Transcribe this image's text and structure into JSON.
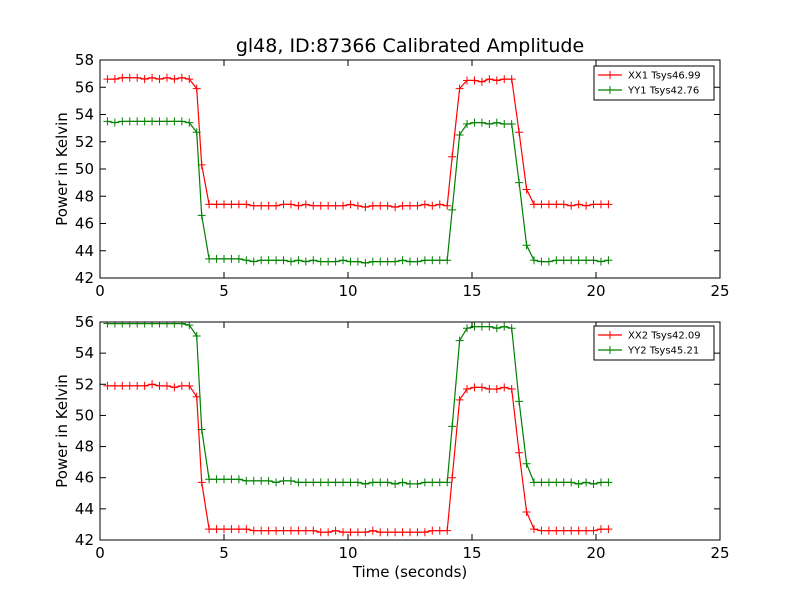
{
  "figure": {
    "title": "gl48, ID:87366 Calibrated Amplitude"
  },
  "chart_data": [
    {
      "type": "line",
      "title": "gl48, ID:87366 Calibrated Amplitude",
      "xlabel": "",
      "ylabel": "Power in Kelvin",
      "xlim": [
        0,
        25
      ],
      "ylim": [
        42,
        58
      ],
      "xticks": [
        0,
        5,
        10,
        15,
        20,
        25
      ],
      "yticks": [
        42,
        44,
        46,
        48,
        50,
        52,
        54,
        56,
        58
      ],
      "grid": false,
      "legend_position": "top-right",
      "marker": "plus",
      "series": [
        {
          "name": "XX1 Tsys46.99",
          "color": "#ff0000",
          "x": [
            0.3,
            0.6,
            0.9,
            1.2,
            1.5,
            1.8,
            2.1,
            2.4,
            2.7,
            3.0,
            3.3,
            3.6,
            3.9,
            4.1,
            4.4,
            4.7,
            5.0,
            5.3,
            5.6,
            5.9,
            6.2,
            6.5,
            6.8,
            7.1,
            7.4,
            7.7,
            8.0,
            8.3,
            8.6,
            8.9,
            9.2,
            9.5,
            9.8,
            10.1,
            10.4,
            10.7,
            11.0,
            11.3,
            11.6,
            11.9,
            12.2,
            12.5,
            12.8,
            13.1,
            13.4,
            13.7,
            14.0,
            14.2,
            14.5,
            14.8,
            15.1,
            15.4,
            15.7,
            16.0,
            16.3,
            16.6,
            16.9,
            17.2,
            17.5,
            17.8,
            18.1,
            18.4,
            18.7,
            19.0,
            19.3,
            19.6,
            19.9,
            20.2,
            20.5
          ],
          "y": [
            56.6,
            56.6,
            56.7,
            56.7,
            56.7,
            56.6,
            56.7,
            56.6,
            56.7,
            56.6,
            56.7,
            56.6,
            55.9,
            50.3,
            47.4,
            47.4,
            47.4,
            47.4,
            47.4,
            47.4,
            47.3,
            47.3,
            47.3,
            47.3,
            47.4,
            47.4,
            47.3,
            47.4,
            47.3,
            47.3,
            47.3,
            47.3,
            47.3,
            47.4,
            47.3,
            47.2,
            47.3,
            47.3,
            47.3,
            47.2,
            47.3,
            47.3,
            47.3,
            47.4,
            47.3,
            47.4,
            47.3,
            50.9,
            55.9,
            56.5,
            56.5,
            56.4,
            56.6,
            56.5,
            56.6,
            56.6,
            52.7,
            48.5,
            47.4,
            47.4,
            47.4,
            47.4,
            47.4,
            47.3,
            47.4,
            47.3,
            47.4,
            47.4,
            47.4
          ]
        },
        {
          "name": "YY1 Tsys42.76",
          "color": "#008000",
          "x": [
            0.3,
            0.6,
            0.9,
            1.2,
            1.5,
            1.8,
            2.1,
            2.4,
            2.7,
            3.0,
            3.3,
            3.6,
            3.9,
            4.1,
            4.4,
            4.7,
            5.0,
            5.3,
            5.6,
            5.9,
            6.2,
            6.5,
            6.8,
            7.1,
            7.4,
            7.7,
            8.0,
            8.3,
            8.6,
            8.9,
            9.2,
            9.5,
            9.8,
            10.1,
            10.4,
            10.7,
            11.0,
            11.3,
            11.6,
            11.9,
            12.2,
            12.5,
            12.8,
            13.1,
            13.4,
            13.7,
            14.0,
            14.2,
            14.5,
            14.8,
            15.1,
            15.4,
            15.7,
            16.0,
            16.3,
            16.6,
            16.9,
            17.2,
            17.5,
            17.8,
            18.1,
            18.4,
            18.7,
            19.0,
            19.3,
            19.6,
            19.9,
            20.2,
            20.5
          ],
          "y": [
            53.5,
            53.4,
            53.5,
            53.5,
            53.5,
            53.5,
            53.5,
            53.5,
            53.5,
            53.5,
            53.5,
            53.4,
            52.7,
            46.6,
            43.4,
            43.4,
            43.4,
            43.4,
            43.4,
            43.3,
            43.2,
            43.3,
            43.3,
            43.3,
            43.3,
            43.2,
            43.3,
            43.2,
            43.3,
            43.2,
            43.2,
            43.2,
            43.3,
            43.2,
            43.2,
            43.1,
            43.2,
            43.2,
            43.2,
            43.2,
            43.3,
            43.2,
            43.2,
            43.3,
            43.3,
            43.3,
            43.3,
            47.0,
            52.5,
            53.3,
            53.4,
            53.4,
            53.3,
            53.4,
            53.3,
            53.3,
            49.0,
            44.4,
            43.3,
            43.2,
            43.2,
            43.3,
            43.3,
            43.3,
            43.3,
            43.3,
            43.3,
            43.2,
            43.3
          ]
        }
      ]
    },
    {
      "type": "line",
      "title": "",
      "xlabel": "Time (seconds)",
      "ylabel": "Power in Kelvin",
      "xlim": [
        0,
        25
      ],
      "ylim": [
        42,
        56
      ],
      "xticks": [
        0,
        5,
        10,
        15,
        20,
        25
      ],
      "yticks": [
        42,
        44,
        46,
        48,
        50,
        52,
        54,
        56
      ],
      "grid": false,
      "legend_position": "top-right",
      "marker": "plus",
      "series": [
        {
          "name": "XX2 Tsys42.09",
          "color": "#ff0000",
          "x": [
            0.3,
            0.6,
            0.9,
            1.2,
            1.5,
            1.8,
            2.1,
            2.4,
            2.7,
            3.0,
            3.3,
            3.6,
            3.9,
            4.1,
            4.4,
            4.7,
            5.0,
            5.3,
            5.6,
            5.9,
            6.2,
            6.5,
            6.8,
            7.1,
            7.4,
            7.7,
            8.0,
            8.3,
            8.6,
            8.9,
            9.2,
            9.5,
            9.8,
            10.1,
            10.4,
            10.7,
            11.0,
            11.3,
            11.6,
            11.9,
            12.2,
            12.5,
            12.8,
            13.1,
            13.4,
            13.7,
            14.0,
            14.2,
            14.5,
            14.8,
            15.1,
            15.4,
            15.7,
            16.0,
            16.3,
            16.6,
            16.9,
            17.2,
            17.5,
            17.8,
            18.1,
            18.4,
            18.7,
            19.0,
            19.3,
            19.6,
            19.9,
            20.2,
            20.5
          ],
          "y": [
            51.9,
            51.9,
            51.9,
            51.9,
            51.9,
            51.9,
            52.0,
            51.9,
            51.9,
            51.8,
            51.9,
            51.9,
            51.2,
            45.7,
            42.7,
            42.7,
            42.7,
            42.7,
            42.7,
            42.7,
            42.6,
            42.6,
            42.6,
            42.6,
            42.6,
            42.6,
            42.6,
            42.6,
            42.6,
            42.5,
            42.5,
            42.6,
            42.5,
            42.5,
            42.5,
            42.5,
            42.6,
            42.5,
            42.5,
            42.5,
            42.5,
            42.5,
            42.5,
            42.5,
            42.6,
            42.6,
            42.6,
            46.0,
            51.0,
            51.7,
            51.8,
            51.8,
            51.7,
            51.7,
            51.8,
            51.7,
            47.6,
            43.8,
            42.7,
            42.6,
            42.6,
            42.6,
            42.6,
            42.6,
            42.6,
            42.6,
            42.6,
            42.7,
            42.7
          ]
        },
        {
          "name": "YY2 Tsys45.21",
          "color": "#008000",
          "x": [
            0.3,
            0.6,
            0.9,
            1.2,
            1.5,
            1.8,
            2.1,
            2.4,
            2.7,
            3.0,
            3.3,
            3.6,
            3.9,
            4.1,
            4.4,
            4.7,
            5.0,
            5.3,
            5.6,
            5.9,
            6.2,
            6.5,
            6.8,
            7.1,
            7.4,
            7.7,
            8.0,
            8.3,
            8.6,
            8.9,
            9.2,
            9.5,
            9.8,
            10.1,
            10.4,
            10.7,
            11.0,
            11.3,
            11.6,
            11.9,
            12.2,
            12.5,
            12.8,
            13.1,
            13.4,
            13.7,
            14.0,
            14.2,
            14.5,
            14.8,
            15.1,
            15.4,
            15.7,
            16.0,
            16.3,
            16.6,
            16.9,
            17.2,
            17.5,
            17.8,
            18.1,
            18.4,
            18.7,
            19.0,
            19.3,
            19.6,
            19.9,
            20.2,
            20.5
          ],
          "y": [
            55.9,
            55.9,
            55.9,
            55.9,
            55.9,
            55.9,
            55.9,
            55.9,
            55.9,
            55.9,
            55.9,
            55.8,
            55.1,
            49.1,
            45.9,
            45.9,
            45.9,
            45.9,
            45.9,
            45.8,
            45.8,
            45.8,
            45.8,
            45.7,
            45.8,
            45.8,
            45.7,
            45.7,
            45.7,
            45.7,
            45.7,
            45.7,
            45.7,
            45.7,
            45.7,
            45.6,
            45.7,
            45.7,
            45.7,
            45.6,
            45.7,
            45.6,
            45.6,
            45.7,
            45.7,
            45.7,
            45.7,
            49.3,
            54.8,
            55.6,
            55.7,
            55.7,
            55.7,
            55.6,
            55.7,
            55.6,
            50.9,
            46.9,
            45.7,
            45.7,
            45.7,
            45.7,
            45.7,
            45.7,
            45.6,
            45.7,
            45.6,
            45.7,
            45.7
          ]
        }
      ]
    }
  ]
}
